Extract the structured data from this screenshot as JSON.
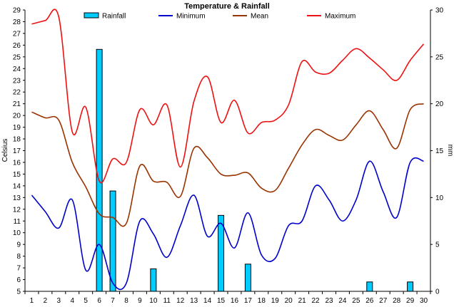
{
  "chart_data": {
    "type": "bar+line",
    "title": "Temperature & Rainfall",
    "xlabel": "",
    "ylabel_left": "Celsius",
    "ylabel_right": "mm",
    "x": [
      1,
      2,
      3,
      4,
      5,
      6,
      7,
      8,
      9,
      10,
      11,
      12,
      13,
      14,
      15,
      16,
      17,
      18,
      19,
      20,
      21,
      22,
      23,
      24,
      25,
      26,
      27,
      28,
      29,
      30
    ],
    "ylim_left": [
      5,
      29
    ],
    "ylim_right": [
      0,
      30
    ],
    "left_ticks": [
      5,
      6,
      7,
      8,
      9,
      10,
      11,
      12,
      13,
      14,
      15,
      16,
      17,
      18,
      19,
      20,
      21,
      22,
      23,
      24,
      25,
      26,
      27,
      28,
      29
    ],
    "right_ticks": [
      0,
      5,
      10,
      15,
      20,
      25,
      30
    ],
    "grid": false,
    "legend_position": "top",
    "series": [
      {
        "name": "Rainfall",
        "kind": "bar",
        "axis": "right",
        "color": "#00ccff",
        "values": [
          0,
          0,
          0,
          0,
          0,
          25.8,
          10.7,
          0,
          0,
          2.4,
          0,
          0,
          0,
          0,
          8.1,
          0,
          2.9,
          0,
          0,
          0,
          0,
          0,
          0,
          0,
          0,
          1,
          0,
          0,
          1,
          0
        ]
      },
      {
        "name": "Minimum",
        "kind": "line",
        "axis": "left",
        "color": "#0000cc",
        "values": [
          13.2,
          11.8,
          10.4,
          12.8,
          6.8,
          9.0,
          5.7,
          5.7,
          11.0,
          9.9,
          7.9,
          10.6,
          13.2,
          9.7,
          10.8,
          8.7,
          11.7,
          8.1,
          7.8,
          10.6,
          11.0,
          14.0,
          12.8,
          11.0,
          12.8,
          16.1,
          13.5,
          11.3,
          16.0,
          16.1
        ]
      },
      {
        "name": "Mean",
        "kind": "line",
        "axis": "left",
        "color": "#993300",
        "values": [
          20.3,
          19.8,
          19.6,
          16.0,
          13.9,
          11.6,
          11.3,
          10.8,
          15.7,
          14.4,
          14.3,
          13.1,
          17.2,
          16.4,
          15.0,
          14.9,
          15.1,
          13.8,
          13.6,
          15.5,
          17.5,
          18.8,
          18.3,
          17.9,
          19.2,
          20.4,
          18.8,
          17.2,
          20.5,
          21.0
        ]
      },
      {
        "name": "Maximum",
        "kind": "line",
        "axis": "left",
        "color": "#ee1111",
        "values": [
          27.8,
          28.1,
          28.4,
          18.6,
          20.7,
          14.4,
          16.3,
          16.0,
          20.5,
          19.2,
          20.9,
          15.6,
          21.2,
          23.3,
          19.4,
          21.3,
          18.5,
          19.4,
          19.6,
          20.9,
          24.6,
          23.7,
          23.6,
          24.7,
          25.7,
          24.9,
          23.9,
          23.0,
          24.7,
          26.1
        ]
      }
    ]
  }
}
